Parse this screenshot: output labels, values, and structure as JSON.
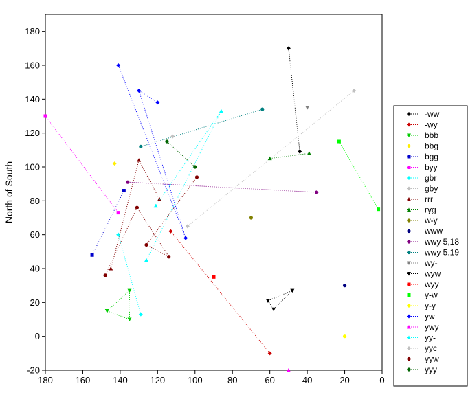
{
  "chart_data": {
    "type": "scatter",
    "title": "",
    "xlabel": "",
    "ylabel": "North of South",
    "x_reversed": true,
    "xlim": [
      0,
      180
    ],
    "ylim": [
      -20,
      190
    ],
    "x_ticks": [
      "180",
      "160",
      "140",
      "120",
      "100",
      "80",
      "60",
      "40",
      "20",
      "0"
    ],
    "x_tick_values": [
      180,
      160,
      140,
      120,
      100,
      80,
      60,
      40,
      20,
      0
    ],
    "y_ticks": [
      "-20",
      "0",
      "20",
      "40",
      "60",
      "80",
      "100",
      "120",
      "140",
      "160",
      "180"
    ],
    "y_tick_values": [
      -20,
      0,
      20,
      40,
      60,
      80,
      100,
      120,
      140,
      160,
      180
    ],
    "grid": false,
    "legend_position": "right",
    "line_style": "dotted",
    "series": [
      {
        "name": "-ww",
        "color": "#000000",
        "marker": "diamond",
        "points": [
          [
            50,
            170
          ],
          [
            44,
            109
          ]
        ]
      },
      {
        "name": "-wy",
        "color": "#cc0000",
        "marker": "diamond",
        "points": [
          [
            113,
            62
          ],
          [
            60,
            -10
          ]
        ]
      },
      {
        "name": "bbb",
        "color": "#00cc00",
        "marker": "triangle-down",
        "points": [
          [
            147,
            15
          ],
          [
            135,
            10
          ],
          [
            135,
            27
          ],
          [
            147,
            15
          ]
        ]
      },
      {
        "name": "bbg",
        "color": "#ffee00",
        "marker": "diamond",
        "points": [
          [
            143,
            102
          ]
        ]
      },
      {
        "name": "bgg",
        "color": "#0000cc",
        "marker": "square",
        "points": [
          [
            155,
            48
          ],
          [
            138,
            86
          ]
        ]
      },
      {
        "name": "byy",
        "color": "#ff00ff",
        "marker": "square",
        "points": [
          [
            180,
            130
          ],
          [
            141,
            73
          ]
        ]
      },
      {
        "name": "gbr",
        "color": "#00ffff",
        "marker": "diamond",
        "points": [
          [
            141,
            60
          ],
          [
            129,
            13
          ]
        ]
      },
      {
        "name": "gby",
        "color": "#c0c0c0",
        "marker": "diamond",
        "points": [
          [
            104,
            65
          ],
          [
            15,
            145
          ]
        ]
      },
      {
        "name": "rrr",
        "color": "#800000",
        "marker": "triangle",
        "points": [
          [
            145,
            40
          ],
          [
            130,
            104
          ],
          [
            119,
            81
          ]
        ]
      },
      {
        "name": "ryg",
        "color": "#008000",
        "marker": "triangle",
        "points": [
          [
            60,
            105
          ],
          [
            39,
            108
          ]
        ]
      },
      {
        "name": "w-y",
        "color": "#808000",
        "marker": "circle",
        "points": [
          [
            70,
            70
          ]
        ]
      },
      {
        "name": "www",
        "color": "#000080",
        "marker": "circle",
        "points": [
          [
            20,
            30
          ]
        ]
      },
      {
        "name": "wwy 5,18",
        "color": "#800080",
        "marker": "circle",
        "points": [
          [
            136,
            91
          ],
          [
            35,
            85
          ]
        ]
      },
      {
        "name": "wwy 5,19",
        "color": "#008080",
        "marker": "circle",
        "points": [
          [
            129,
            112
          ],
          [
            64,
            134
          ]
        ]
      },
      {
        "name": "wy-",
        "color": "#808080",
        "marker": "triangle-down",
        "points": [
          [
            40,
            135
          ]
        ]
      },
      {
        "name": "wyw",
        "color": "#000000",
        "marker": "triangle-down",
        "points": [
          [
            61,
            21
          ],
          [
            58,
            16
          ],
          [
            48,
            27
          ],
          [
            61,
            21
          ]
        ]
      },
      {
        "name": "wyy",
        "color": "#ff0000",
        "marker": "square",
        "points": [
          [
            90,
            35
          ]
        ]
      },
      {
        "name": "y-w",
        "color": "#00ff00",
        "marker": "square",
        "points": [
          [
            23,
            115
          ],
          [
            2,
            75
          ]
        ]
      },
      {
        "name": "y-y",
        "color": "#ffff00",
        "marker": "circle",
        "points": [
          [
            20,
            0
          ]
        ]
      },
      {
        "name": "yw-",
        "color": "#0000ff",
        "marker": "diamond",
        "points": [
          [
            141,
            160
          ],
          [
            105,
            58
          ],
          [
            130,
            145
          ],
          [
            120,
            138
          ]
        ]
      },
      {
        "name": "ywy",
        "color": "#ff00ff",
        "marker": "triangle",
        "points": [
          [
            50,
            -20
          ]
        ]
      },
      {
        "name": "yy-",
        "color": "#00ffff",
        "marker": "triangle",
        "points": [
          [
            126,
            45
          ],
          [
            86,
            133
          ],
          [
            121,
            77
          ]
        ]
      },
      {
        "name": "yyc",
        "color": "#c0c0c0",
        "marker": "diamond",
        "points": [
          [
            112,
            118
          ]
        ]
      },
      {
        "name": "yyw",
        "color": "#800000",
        "marker": "circle",
        "points": [
          [
            148,
            36
          ],
          [
            131,
            76
          ],
          [
            114,
            47
          ],
          [
            126,
            54
          ],
          [
            99,
            94
          ]
        ]
      },
      {
        "name": "yyy",
        "color": "#006400",
        "marker": "circle",
        "points": [
          [
            115,
            115
          ],
          [
            100,
            100
          ]
        ]
      }
    ]
  }
}
